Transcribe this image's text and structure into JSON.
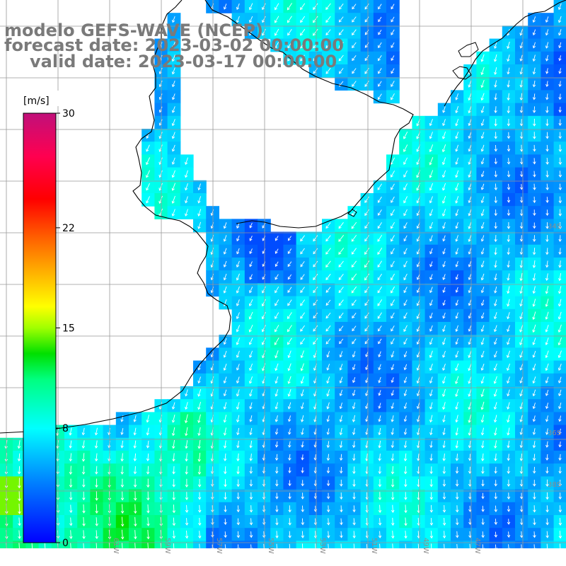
{
  "title": {
    "line1": "modelo GEFS-WAVE (NCEP)",
    "line2": "forecast date: 2023-03-02 00:00:00",
    "line3": "valid date: 2023-03-17 00:00:00"
  },
  "colorbar": {
    "unit": "[m/s]",
    "ticks": [
      "30",
      "22",
      "15",
      "8",
      "0"
    ],
    "tick_values": [
      30,
      22,
      15,
      8,
      0
    ],
    "range": [
      0,
      30
    ],
    "colors": [
      "#0000ff",
      "#0090ff",
      "#00e8ff",
      "#00ff90",
      "#00dd00",
      "#90ff00",
      "#ffff00",
      "#ffaa00",
      "#ff5000",
      "#ff0000",
      "#ff0060",
      "#cc0077",
      "#bb1188"
    ]
  },
  "map": {
    "variable": "wind speed and direction",
    "longitude_labels": [
      "61W",
      "59W",
      "57W",
      "55W",
      "53W",
      "51W",
      "49W",
      "47W"
    ],
    "latitude_labels": [
      "34S",
      "36S",
      "38S"
    ],
    "land_color": "#ffffff",
    "grid_color": "#999999",
    "coast_color": "#000000",
    "arrow_color": "#ffffff"
  }
}
